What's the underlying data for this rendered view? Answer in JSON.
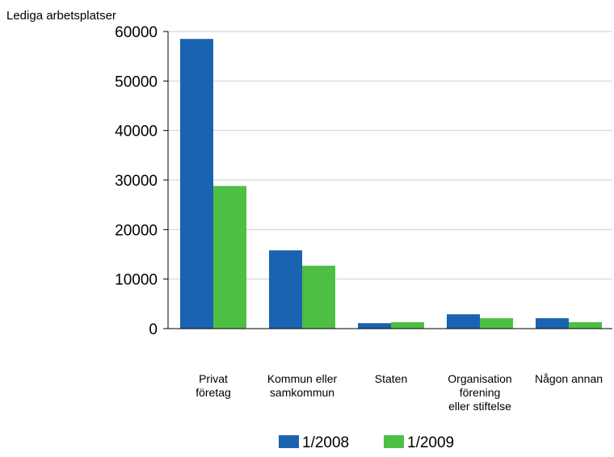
{
  "chart_data": {
    "type": "bar",
    "title": "",
    "ylabel": "Lediga arbetsplatser",
    "xlabel": "",
    "ylim": [
      0,
      60000
    ],
    "yticks": [
      0,
      10000,
      20000,
      30000,
      40000,
      50000,
      60000
    ],
    "grid": true,
    "legend_position": "bottom",
    "categories": [
      [
        "Privat",
        "företag"
      ],
      [
        "Kommun eller",
        "samkommun"
      ],
      [
        "Staten"
      ],
      [
        "Organisation",
        "förening",
        "eller stiftelse"
      ],
      [
        "Någon annan"
      ]
    ],
    "series": [
      {
        "name": "1/2008",
        "color": "#1a63b0",
        "values": [
          58500,
          15800,
          1100,
          2900,
          2100
        ]
      },
      {
        "name": "1/2009",
        "color": "#4dbf45",
        "values": [
          28800,
          12700,
          1300,
          2100,
          1300
        ]
      }
    ]
  }
}
